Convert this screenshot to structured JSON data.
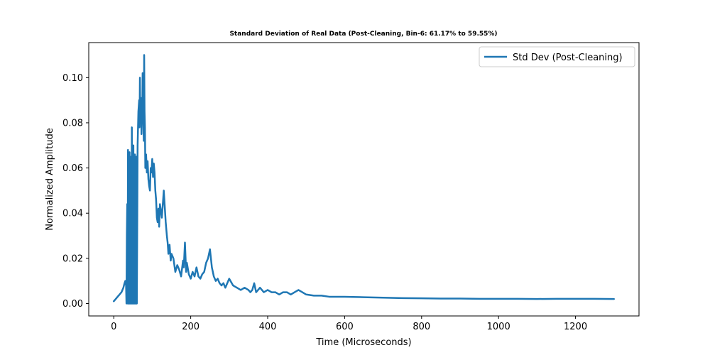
{
  "chart_data": {
    "type": "line",
    "title": "Standard Deviation of Real Data (Post-Cleaning, Bin-6: 61.17% to 59.55%)",
    "xlabel": "Time (Microseconds)",
    "ylabel": "Normalized Amplitude",
    "xlim": [
      -65,
      1365
    ],
    "ylim": [
      -0.0055,
      0.1155
    ],
    "xticks": [
      0,
      200,
      400,
      600,
      800,
      1000,
      1200
    ],
    "xtick_labels": [
      "0",
      "200",
      "400",
      "600",
      "800",
      "1000",
      "1200"
    ],
    "yticks": [
      0.0,
      0.02,
      0.04,
      0.06,
      0.08,
      0.1
    ],
    "ytick_labels": [
      "0.00",
      "0.02",
      "0.04",
      "0.06",
      "0.08",
      "0.10"
    ],
    "grid": false,
    "legend_position": "top-right",
    "series": [
      {
        "name": "Std Dev (Post-Cleaning)",
        "color": "#1f77b4",
        "x": [
          0,
          5,
          10,
          15,
          20,
          25,
          28,
          30,
          32,
          33,
          34,
          35,
          36,
          37,
          38,
          39,
          40,
          41,
          42,
          43,
          44,
          45,
          46,
          47,
          48,
          49,
          50,
          51,
          52,
          53,
          54,
          55,
          56,
          57,
          58,
          59,
          60,
          62,
          64,
          66,
          67,
          68,
          69,
          70,
          71,
          72,
          73,
          74,
          75,
          76,
          77,
          78,
          79,
          80,
          81,
          82,
          84,
          86,
          88,
          90,
          92,
          94,
          96,
          98,
          100,
          102,
          104,
          106,
          108,
          110,
          112,
          114,
          116,
          118,
          120,
          125,
          130,
          135,
          138,
          140,
          142,
          145,
          148,
          150,
          155,
          160,
          165,
          170,
          175,
          180,
          182,
          185,
          188,
          190,
          195,
          200,
          205,
          210,
          215,
          220,
          225,
          230,
          235,
          240,
          245,
          250,
          255,
          260,
          265,
          270,
          275,
          280,
          285,
          290,
          295,
          300,
          310,
          320,
          330,
          340,
          350,
          355,
          360,
          365,
          370,
          375,
          380,
          390,
          400,
          410,
          420,
          430,
          440,
          450,
          460,
          470,
          480,
          490,
          500,
          520,
          540,
          560,
          580,
          600,
          650,
          700,
          750,
          800,
          850,
          900,
          950,
          1000,
          1050,
          1100,
          1150,
          1200,
          1250,
          1300
        ],
        "y": [
          0.001,
          0.002,
          0.003,
          0.004,
          0.005,
          0.007,
          0.009,
          0.01,
          0.008,
          0.0,
          0.03,
          0.044,
          0.0,
          0.068,
          0.0,
          0.066,
          0.0,
          0.067,
          0.0,
          0.06,
          0.0,
          0.065,
          0.0,
          0.078,
          0.0,
          0.07,
          0.0,
          0.07,
          0.0,
          0.062,
          0.0,
          0.066,
          0.0,
          0.06,
          0.0,
          0.065,
          0.0,
          0.07,
          0.085,
          0.09,
          0.078,
          0.1,
          0.082,
          0.086,
          0.091,
          0.075,
          0.089,
          0.08,
          0.102,
          0.085,
          0.079,
          0.072,
          0.11,
          0.085,
          0.078,
          0.06,
          0.066,
          0.058,
          0.063,
          0.055,
          0.052,
          0.05,
          0.06,
          0.058,
          0.064,
          0.056,
          0.062,
          0.058,
          0.05,
          0.046,
          0.038,
          0.036,
          0.042,
          0.034,
          0.044,
          0.038,
          0.05,
          0.036,
          0.03,
          0.027,
          0.022,
          0.026,
          0.019,
          0.022,
          0.02,
          0.014,
          0.017,
          0.015,
          0.012,
          0.019,
          0.016,
          0.027,
          0.014,
          0.018,
          0.013,
          0.011,
          0.014,
          0.012,
          0.016,
          0.012,
          0.011,
          0.013,
          0.014,
          0.018,
          0.02,
          0.024,
          0.016,
          0.012,
          0.01,
          0.011,
          0.009,
          0.008,
          0.009,
          0.007,
          0.009,
          0.011,
          0.008,
          0.007,
          0.006,
          0.007,
          0.006,
          0.005,
          0.006,
          0.009,
          0.005,
          0.006,
          0.007,
          0.005,
          0.006,
          0.005,
          0.005,
          0.004,
          0.005,
          0.005,
          0.004,
          0.005,
          0.006,
          0.005,
          0.004,
          0.0035,
          0.0035,
          0.003,
          0.003,
          0.003,
          0.0028,
          0.0026,
          0.0024,
          0.0023,
          0.0022,
          0.0022,
          0.0021,
          0.0021,
          0.0021,
          0.002,
          0.0021,
          0.0021,
          0.0021,
          0.002
        ]
      }
    ]
  }
}
